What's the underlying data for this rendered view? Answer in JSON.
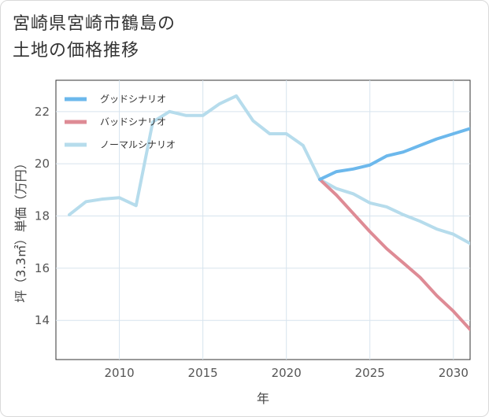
{
  "chart_data": {
    "type": "line",
    "title_line1": "宮崎県宮崎市鶴島の",
    "title_line2": "土地の価格推移",
    "xlabel": "年",
    "ylabel": "坪（3.3㎡）単価（万円）",
    "xlim": [
      2006.2,
      2031
    ],
    "ylim": [
      12.5,
      23.2
    ],
    "x_ticks": [
      2010,
      2015,
      2020,
      2025,
      2030
    ],
    "x_tick_labels": [
      "2010",
      "2015",
      "2020",
      "2025",
      "2030"
    ],
    "y_ticks": [
      14,
      16,
      18,
      20,
      22
    ],
    "y_tick_labels": [
      "14",
      "16",
      "18",
      "20",
      "22"
    ],
    "grid": true,
    "legend_position": "top-left",
    "series": [
      {
        "name": "グッドシナリオ",
        "color": "#6cb8ec",
        "x": [
          2022,
          2023,
          2024,
          2025,
          2026,
          2027,
          2028,
          2029,
          2030,
          2031
        ],
        "values": [
          19.4,
          19.7,
          19.8,
          19.95,
          20.3,
          20.45,
          20.7,
          20.95,
          21.15,
          21.35
        ]
      },
      {
        "name": "バッドシナリオ",
        "color": "#de8b95",
        "x": [
          2022,
          2023,
          2024,
          2025,
          2026,
          2027,
          2028,
          2029,
          2030,
          2031
        ],
        "values": [
          19.4,
          18.8,
          18.1,
          17.4,
          16.75,
          16.2,
          15.65,
          14.95,
          14.35,
          13.65
        ]
      },
      {
        "name": "ノーマルシナリオ",
        "color": "#b6dcec",
        "x": [
          2007,
          2008,
          2009,
          2010,
          2011,
          2012,
          2013,
          2014,
          2015,
          2016,
          2017,
          2018,
          2019,
          2020,
          2021,
          2022,
          2023,
          2024,
          2025,
          2026,
          2027,
          2028,
          2029,
          2030,
          2031
        ],
        "values": [
          18.05,
          18.55,
          18.65,
          18.7,
          18.4,
          21.6,
          22.0,
          21.85,
          21.85,
          22.3,
          22.6,
          21.65,
          21.15,
          21.15,
          20.7,
          19.4,
          19.05,
          18.85,
          18.5,
          18.35,
          18.05,
          17.8,
          17.5,
          17.3,
          16.95
        ]
      }
    ]
  }
}
